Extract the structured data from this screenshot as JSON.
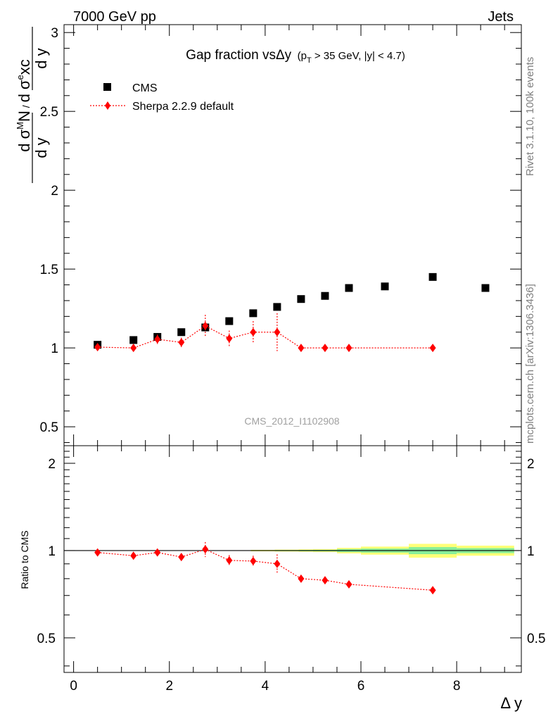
{
  "header": {
    "left": "7000 GeV pp",
    "right": "Jets"
  },
  "side_labels": {
    "rivet": "Rivet 3.1.10,  100k events",
    "mcplots": "mcplots.cern.ch [arXiv:1306.3436]"
  },
  "chart_data": [
    {
      "type": "scatter",
      "title_main": "Gap fraction vsΔy",
      "title_sub": "(p",
      "title_sub_T": "T",
      "title_sub_rest": " > 35 GeV, |y| < 4.7)",
      "ylabel": "d σᴹN / d σᵉxc   (d y)",
      "watermark": "CMS_2012_I1102908",
      "xlim": [
        -0.2,
        9.35
      ],
      "ylim": [
        0.38,
        3.05
      ],
      "yticks": [
        "0.5",
        "1",
        "1.5",
        "2",
        "2.5",
        "3"
      ],
      "ytick_values": [
        0.5,
        1,
        1.5,
        2,
        2.5,
        3
      ],
      "legend": {
        "placement": "top-left",
        "entries": [
          "CMS",
          "Sherpa 2.2.9 default"
        ]
      },
      "series": [
        {
          "name": "CMS",
          "color": "#000000",
          "marker": "square",
          "x": [
            0.5,
            1.25,
            1.75,
            2.25,
            2.75,
            3.25,
            3.75,
            4.25,
            4.75,
            5.25,
            5.75,
            6.5,
            7.5,
            8.6
          ],
          "y": [
            1.02,
            1.05,
            1.07,
            1.1,
            1.13,
            1.17,
            1.22,
            1.26,
            1.31,
            1.33,
            1.38,
            1.39,
            1.45,
            1.38
          ]
        },
        {
          "name": "Sherpa 2.2.9 default",
          "color": "#ff0000",
          "marker": "diamond",
          "x": [
            0.5,
            1.25,
            1.75,
            2.25,
            2.75,
            3.25,
            3.75,
            4.25,
            4.75,
            5.25,
            5.75,
            7.5
          ],
          "y": [
            1.005,
            1.0,
            1.055,
            1.035,
            1.14,
            1.06,
            1.1,
            1.1,
            1.0,
            1.0,
            1.0,
            1.0
          ],
          "yerr": [
            0.02,
            0.015,
            0.03,
            0.03,
            0.07,
            0.05,
            0.07,
            0.12,
            0.0,
            0.0,
            0.0,
            0.0
          ]
        }
      ]
    },
    {
      "type": "scatter",
      "ylabel": "Ratio to CMS",
      "xlabel": "Δ y",
      "xlim": [
        -0.2,
        9.35
      ],
      "ylim": [
        0.38,
        2.3
      ],
      "log_y": true,
      "yticks": [
        "0.5",
        "1",
        "2"
      ],
      "ytick_values": [
        0.5,
        1,
        2
      ],
      "xticks": [
        "0",
        "2",
        "4",
        "6",
        "8"
      ],
      "xtick_values": [
        0,
        2,
        4,
        6,
        8
      ],
      "reference_line": 1.0,
      "uncertainty_bands": [
        {
          "x_from": 3.7,
          "x_to": 4.2,
          "inner": 0.003,
          "outer": 0.006
        },
        {
          "x_from": 4.2,
          "x_to": 4.7,
          "inner": 0.004,
          "outer": 0.008
        },
        {
          "x_from": 4.7,
          "x_to": 5.0,
          "inner": 0.005,
          "outer": 0.01
        },
        {
          "x_from": 5.0,
          "x_to": 5.5,
          "inner": 0.006,
          "outer": 0.012
        },
        {
          "x_from": 5.5,
          "x_to": 6.0,
          "inner": 0.012,
          "outer": 0.022
        },
        {
          "x_from": 6.0,
          "x_to": 7.0,
          "inner": 0.016,
          "outer": 0.032
        },
        {
          "x_from": 7.0,
          "x_to": 8.0,
          "inner": 0.028,
          "outer": 0.055
        },
        {
          "x_from": 8.0,
          "x_to": 9.2,
          "inner": 0.02,
          "outer": 0.04
        }
      ],
      "series": [
        {
          "name": "Sherpa 2.2.9 default",
          "color": "#ff0000",
          "x": [
            0.5,
            1.25,
            1.75,
            2.25,
            2.75,
            3.25,
            3.75,
            4.25,
            4.75,
            5.25,
            5.75,
            7.5
          ],
          "y": [
            0.985,
            0.96,
            0.985,
            0.95,
            1.01,
            0.925,
            0.92,
            0.9,
            0.8,
            0.79,
            0.765,
            0.73
          ],
          "yerr": [
            0.015,
            0.015,
            0.02,
            0.02,
            0.06,
            0.04,
            0.04,
            0.07,
            0.0,
            0.0,
            0.0,
            0.0
          ]
        }
      ]
    }
  ]
}
